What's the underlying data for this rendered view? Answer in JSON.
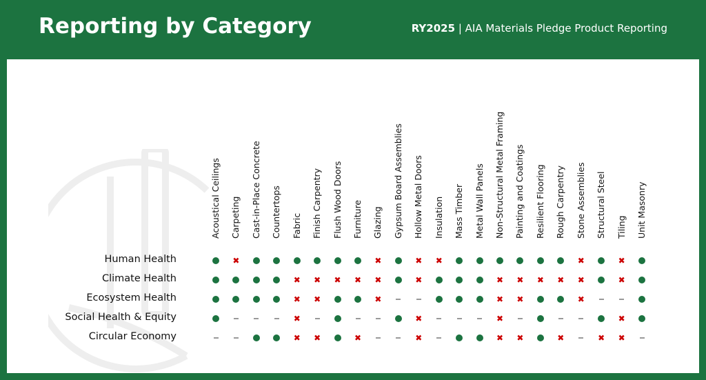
{
  "header": {
    "title": "Reporting by Category",
    "year": "RY2025",
    "separator": " | ",
    "subtitle": "AIA Materials Pledge Product Reporting"
  },
  "colors": {
    "brand": "#1c7340",
    "yes": "#1c7340",
    "no": "#cc0000",
    "na": "#999999"
  },
  "legend_symbols": {
    "o": "reported (green dot)",
    "x": "not reported (red x)",
    "-": "not applicable (gray dash)"
  },
  "categories": [
    "Acoustical Ceilings",
    "Carpeting",
    "Cast-in-Place Concrete",
    "Countertops",
    "Fabric",
    "Finish Carpentry",
    "Flush Wood Doors",
    "Furniture",
    "Glazing",
    "Gypsum Board Assemblies",
    "Hollow Metal Doors",
    "Insulation",
    "Mass Timber",
    "Metal Wall Panels",
    "Non-Structural Metal Framing",
    "Painting and Coatings",
    "Resilient Flooring",
    "Rough Carpentry",
    "Stone Assemblies",
    "Structural Steel",
    "Tiling",
    "Unit Masonry"
  ],
  "rows": [
    {
      "label": "Human Health",
      "values": [
        "o",
        "x",
        "o",
        "o",
        "o",
        "o",
        "o",
        "o",
        "x",
        "o",
        "x",
        "x",
        "o",
        "o",
        "o",
        "o",
        "o",
        "o",
        "x",
        "o",
        "x",
        "o"
      ]
    },
    {
      "label": "Climate Health",
      "values": [
        "o",
        "o",
        "o",
        "o",
        "x",
        "x",
        "x",
        "x",
        "x",
        "o",
        "x",
        "o",
        "o",
        "o",
        "x",
        "x",
        "x",
        "x",
        "x",
        "o",
        "x",
        "o"
      ]
    },
    {
      "label": "Ecosystem Health",
      "values": [
        "o",
        "o",
        "o",
        "o",
        "x",
        "x",
        "o",
        "o",
        "x",
        "-",
        "-",
        "o",
        "o",
        "o",
        "x",
        "x",
        "o",
        "o",
        "x",
        "-",
        "-",
        "o"
      ]
    },
    {
      "label": "Social Health & Equity",
      "values": [
        "o",
        "-",
        "-",
        "-",
        "x",
        "-",
        "o",
        "-",
        "-",
        "o",
        "x",
        "-",
        "-",
        "-",
        "x",
        "-",
        "o",
        "-",
        "-",
        "o",
        "x",
        "o"
      ]
    },
    {
      "label": "Circular Economy",
      "values": [
        "-",
        "-",
        "o",
        "o",
        "x",
        "x",
        "o",
        "x",
        "-",
        "-",
        "x",
        "-",
        "o",
        "o",
        "x",
        "x",
        "o",
        "x",
        "-",
        "x",
        "x",
        "-"
      ]
    }
  ]
}
